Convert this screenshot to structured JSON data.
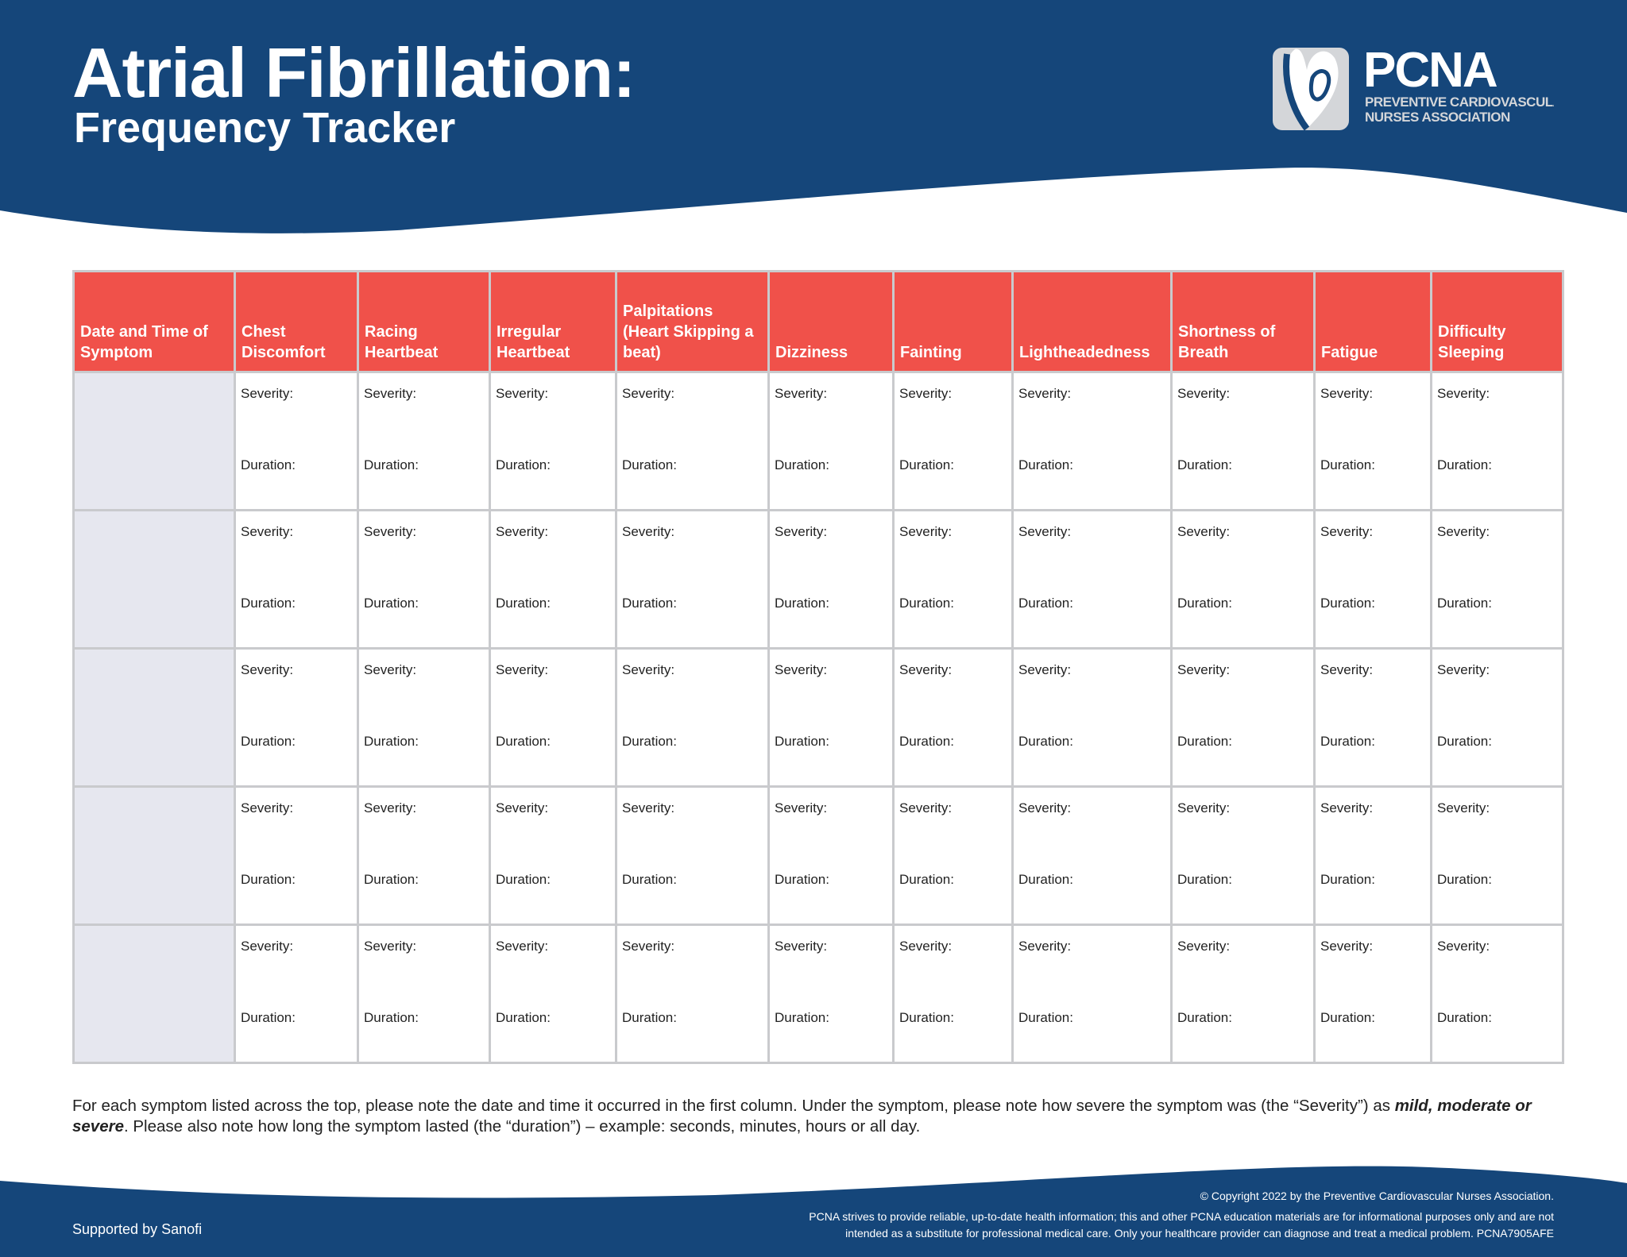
{
  "header": {
    "title": "Atrial Fibrillation:",
    "subtitle": "Frequency Tracker",
    "logo": {
      "name": "PCNA",
      "line1": "PREVENTIVE CARDIOVASCULAR",
      "line2": "NURSES ASSOCIATION"
    }
  },
  "colors": {
    "brand_blue": "#15467a",
    "header_red": "#f0514a",
    "date_column_gray": "#e6e7ef"
  },
  "table": {
    "columns": [
      "Date and Time of Symptom",
      "Chest Discomfort",
      "Racing Heartbeat",
      "Irregular Heartbeat",
      "Palpitations (Heart Skipping a beat)",
      "Dizziness",
      "Fainting",
      "Lightheadedness",
      "Shortness of Breath",
      "Fatigue",
      "Difficulty Sleeping"
    ],
    "severity_label": "Severity:",
    "duration_label": "Duration:",
    "row_count": 5
  },
  "note": {
    "part1": "For each symptom listed across the top, please note the date and time it occurred in the first column. Under the symptom, please note how severe the symptom was (the “Severity”) as ",
    "emphasis": "mild, moderate or severe",
    "part2": ". Please also note how long the symptom lasted (the “duration”) – example: seconds, minutes, hours or all day."
  },
  "footer": {
    "supported_by": "Supported by Sanofi",
    "copyright": "© Copyright 2022 by the Preventive Cardiovascular Nurses Association.",
    "disclaimer_line1": "PCNA strives to provide reliable, up-to-date health information; this and other PCNA education materials are for informational purposes only and are not",
    "disclaimer_line2": "intended as a substitute for professional medical care. Only your healthcare provider can diagnose and treat a medical problem. PCNA7905AFE"
  }
}
